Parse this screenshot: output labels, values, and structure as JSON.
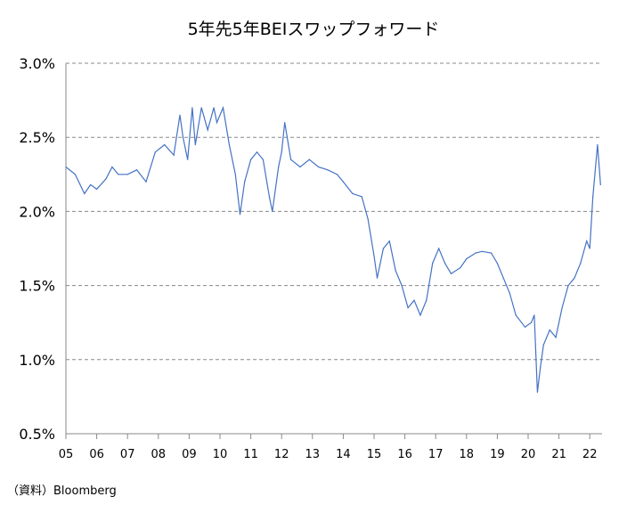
{
  "chart_data": {
    "type": "line",
    "title": "5年先5年BEIスワップフォワード",
    "xlabel": "",
    "ylabel": "",
    "source": "（資料）Bloomberg",
    "ylim": [
      0.5,
      3.0
    ],
    "xlim": [
      2005.0,
      2022.4
    ],
    "yticks": [
      "0.5%",
      "1.0%",
      "1.5%",
      "2.0%",
      "2.5%",
      "3.0%"
    ],
    "ytick_values": [
      0.5,
      1.0,
      1.5,
      2.0,
      2.5,
      3.0
    ],
    "xticks": [
      "05",
      "06",
      "07",
      "08",
      "09",
      "10",
      "11",
      "12",
      "13",
      "14",
      "15",
      "16",
      "17",
      "18",
      "19",
      "20",
      "21",
      "22"
    ],
    "grid": "horizontal dashed",
    "line_color": "#4472C4",
    "series": [
      {
        "name": "5y5y BEI swap forward",
        "x": [
          2005.0,
          2005.3,
          2005.6,
          2005.8,
          2006.0,
          2006.3,
          2006.5,
          2006.7,
          2007.0,
          2007.3,
          2007.6,
          2007.9,
          2008.2,
          2008.5,
          2008.7,
          2008.8,
          2008.95,
          2009.1,
          2009.2,
          2009.4,
          2009.6,
          2009.8,
          2009.9,
          2010.1,
          2010.3,
          2010.5,
          2010.65,
          2010.8,
          2011.0,
          2011.2,
          2011.4,
          2011.6,
          2011.7,
          2011.9,
          2012.0,
          2012.1,
          2012.3,
          2012.6,
          2012.9,
          2013.2,
          2013.5,
          2013.8,
          2014.0,
          2014.3,
          2014.6,
          2014.8,
          2015.0,
          2015.1,
          2015.3,
          2015.5,
          2015.7,
          2015.9,
          2016.1,
          2016.3,
          2016.5,
          2016.7,
          2016.9,
          2017.1,
          2017.3,
          2017.5,
          2017.8,
          2018.0,
          2018.3,
          2018.5,
          2018.8,
          2019.0,
          2019.2,
          2019.4,
          2019.6,
          2019.9,
          2020.1,
          2020.2,
          2020.3,
          2020.4,
          2020.5,
          2020.7,
          2020.9,
          2021.1,
          2021.3,
          2021.5,
          2021.7,
          2021.9,
          2022.0,
          2022.1,
          2022.25,
          2022.35
        ],
        "values": [
          2.3,
          2.25,
          2.12,
          2.18,
          2.15,
          2.22,
          2.3,
          2.25,
          2.25,
          2.28,
          2.2,
          2.4,
          2.45,
          2.38,
          2.65,
          2.5,
          2.35,
          2.7,
          2.45,
          2.7,
          2.55,
          2.7,
          2.6,
          2.7,
          2.45,
          2.25,
          1.98,
          2.2,
          2.35,
          2.4,
          2.35,
          2.1,
          2.0,
          2.3,
          2.4,
          2.6,
          2.35,
          2.3,
          2.35,
          2.3,
          2.28,
          2.25,
          2.2,
          2.12,
          2.1,
          1.95,
          1.7,
          1.55,
          1.75,
          1.8,
          1.6,
          1.5,
          1.35,
          1.4,
          1.3,
          1.4,
          1.65,
          1.75,
          1.65,
          1.58,
          1.62,
          1.68,
          1.72,
          1.73,
          1.72,
          1.65,
          1.55,
          1.45,
          1.3,
          1.22,
          1.25,
          1.3,
          0.78,
          0.95,
          1.1,
          1.2,
          1.15,
          1.35,
          1.5,
          1.55,
          1.65,
          1.8,
          1.75,
          2.1,
          2.45,
          2.18
        ]
      }
    ]
  }
}
